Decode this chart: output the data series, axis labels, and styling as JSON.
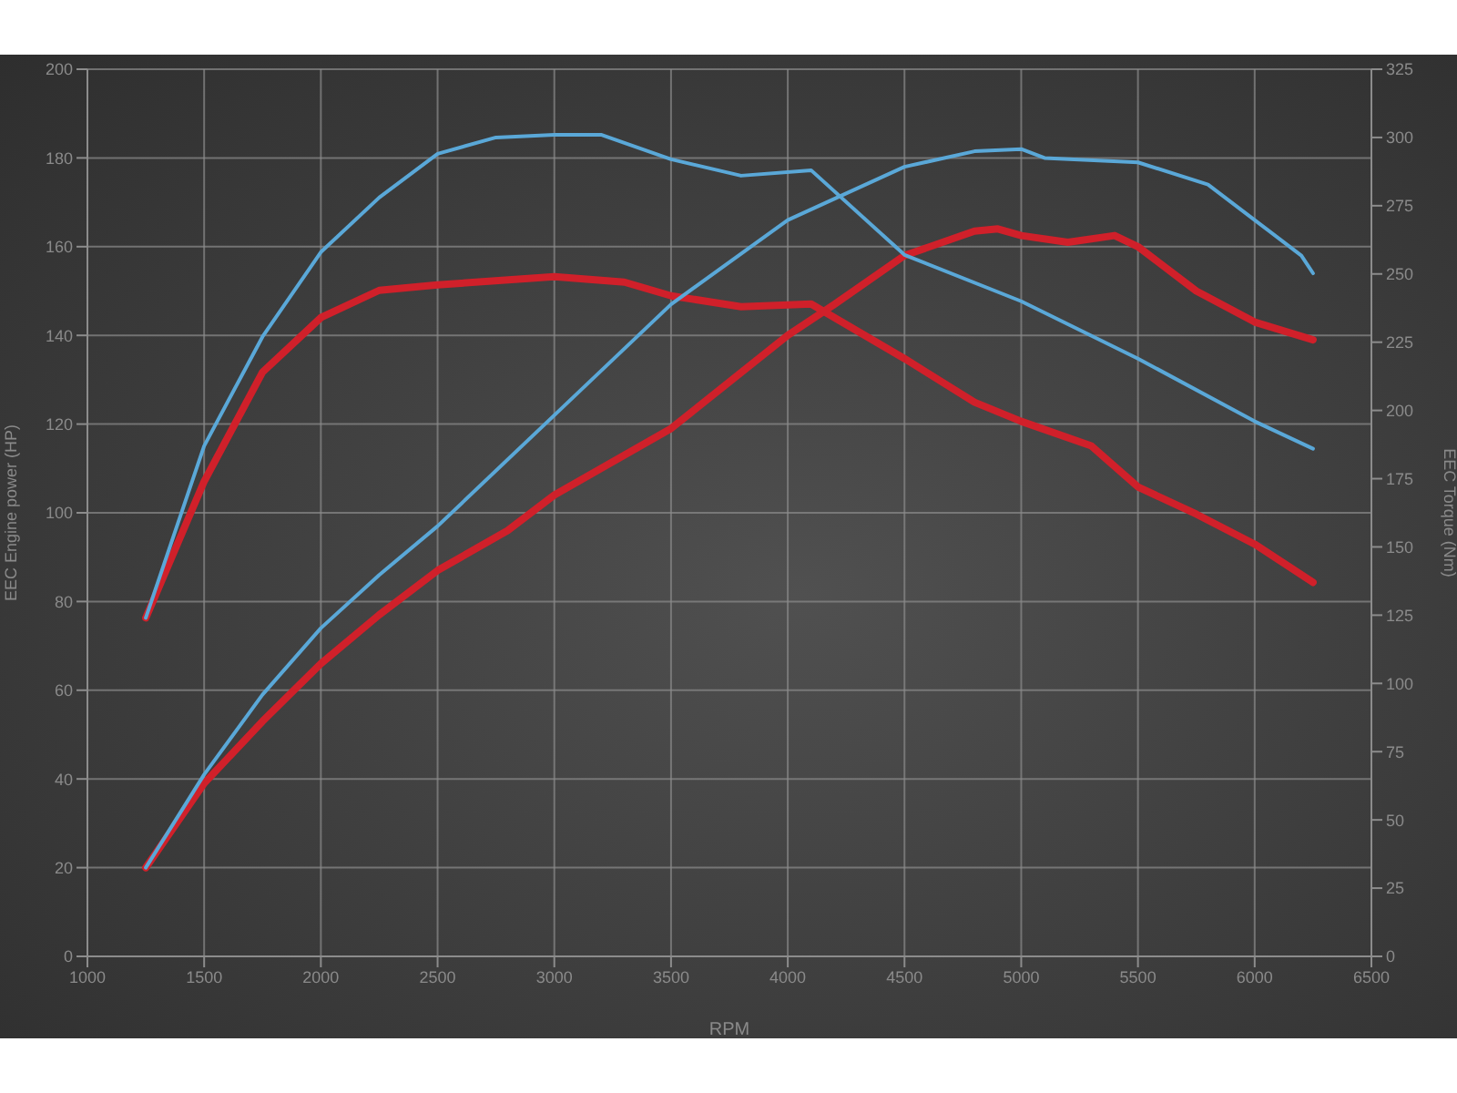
{
  "chart_data": {
    "type": "line",
    "xlabel": "RPM",
    "ylabel": "EEC Engine power (HP)",
    "y2label": "EEC Torque (Nm)",
    "xlim": [
      1000,
      6500
    ],
    "xticks": [
      1000,
      1500,
      2000,
      2500,
      3000,
      3500,
      4000,
      4500,
      5000,
      5500,
      6000,
      6500
    ],
    "ylim": [
      0,
      200
    ],
    "yticks": [
      0,
      20,
      40,
      60,
      80,
      100,
      120,
      140,
      160,
      180,
      200
    ],
    "y2lim": [
      0,
      325
    ],
    "y2ticks": [
      0,
      25,
      50,
      75,
      100,
      125,
      150,
      175,
      200,
      225,
      250,
      275,
      300,
      325
    ],
    "grid": true,
    "marker": "none",
    "line_style": "solid",
    "series": [
      {
        "color": "#5aa8d8",
        "x": [
          1250,
          1500,
          1750,
          2000,
          2250,
          2500,
          3000,
          3500,
          4000,
          4500,
          4800,
          5000,
          5100,
          5500,
          5800,
          6000,
          6200,
          6250
        ],
        "values": [
          20,
          41,
          59,
          74,
          86,
          97,
          122,
          147,
          166,
          178,
          181.5,
          182,
          180,
          179,
          174,
          166,
          158,
          154
        ]
      },
      {
        "color": "#d0202a",
        "x": [
          1250,
          1500,
          1750,
          2000,
          2250,
          2500,
          2800,
          3000,
          3500,
          4000,
          4200,
          4500,
          4800,
          4900,
          5000,
          5200,
          5400,
          5500,
          5750,
          6000,
          6250
        ],
        "values": [
          20,
          39,
          53,
          66,
          77,
          87,
          96,
          104,
          119,
          140,
          147,
          158,
          163.5,
          164,
          162.5,
          161,
          162.5,
          160,
          150,
          143,
          139
        ]
      },
      {
        "color": "#5aa8d8",
        "axis": "y2",
        "x": [
          1250,
          1500,
          1750,
          2000,
          2250,
          2500,
          2750,
          3000,
          3200,
          3500,
          3800,
          4100,
          4500,
          5000,
          5500,
          6000,
          6250
        ],
        "values": [
          124,
          187,
          227,
          258,
          278,
          294,
          300,
          301,
          301,
          292,
          286,
          288,
          257,
          240,
          219,
          196,
          186
        ]
      },
      {
        "color": "#d0202a",
        "axis": "y2",
        "x": [
          1250,
          1500,
          1750,
          2000,
          2250,
          2500,
          3000,
          3300,
          3500,
          3800,
          4100,
          4500,
          4800,
          5000,
          5300,
          5500,
          5750,
          6000,
          6250
        ],
        "values": [
          124,
          174,
          214,
          234,
          244,
          246,
          249,
          247,
          242,
          238,
          239,
          219,
          203,
          196,
          187,
          172,
          162,
          151,
          137
        ]
      }
    ]
  }
}
